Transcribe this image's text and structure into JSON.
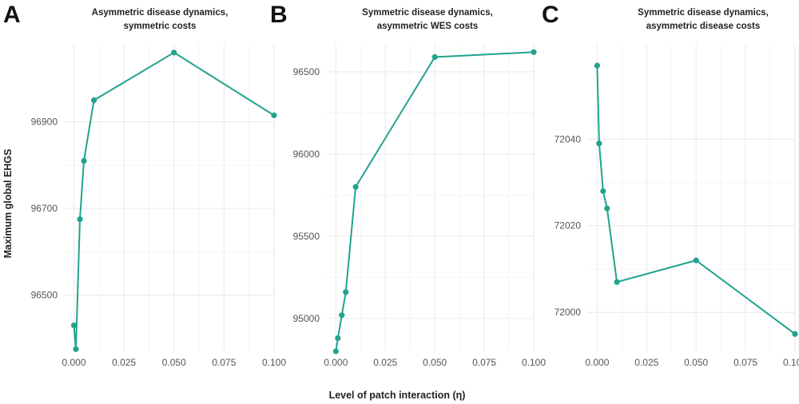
{
  "chart_data": [
    {
      "type": "line",
      "panel": "A",
      "title": "Asymmetric disease dynamics,",
      "subtitle": "symmetric costs",
      "xlabel": "Level of patch interaction (η)",
      "ylabel": "Maximum global EHGS",
      "xlim": [
        -0.005,
        0.1
      ],
      "ylim": [
        96370,
        97080
      ],
      "xticks": [
        0.0,
        0.025,
        0.05,
        0.075,
        0.1
      ],
      "xtick_labels": [
        "0.000",
        "0.025",
        "0.050",
        "0.075",
        "0.100"
      ],
      "yticks": [
        96500,
        96700,
        96900
      ],
      "ytick_labels": [
        "96500",
        "96700",
        "96900"
      ],
      "color": "#21a38e",
      "x": [
        0.0,
        0.001,
        0.003,
        0.005,
        0.01,
        0.05,
        0.1
      ],
      "y": [
        96430,
        96375,
        96675,
        96810,
        96950,
        97060,
        96915
      ]
    },
    {
      "type": "line",
      "panel": "B",
      "title": "Symmetric disease dynamics,",
      "subtitle": "asymmetric WES costs",
      "xlabel": "Level of patch interaction (η)",
      "ylabel": "",
      "xlim": [
        -0.005,
        0.1
      ],
      "ylim": [
        94800,
        96670
      ],
      "xticks": [
        0.0,
        0.025,
        0.05,
        0.075,
        0.1
      ],
      "xtick_labels": [
        "0.000",
        "0.025",
        "0.050",
        "0.075",
        "0.100"
      ],
      "yticks": [
        95000,
        95500,
        96000,
        96500
      ],
      "ytick_labels": [
        "95000",
        "95500",
        "96000",
        "96500"
      ],
      "color": "#21a38e",
      "x": [
        0.0,
        0.001,
        0.003,
        0.005,
        0.01,
        0.05,
        0.1
      ],
      "y": [
        94800,
        94880,
        95020,
        95160,
        95800,
        96590,
        96620
      ]
    },
    {
      "type": "line",
      "panel": "C",
      "title": "Symmetric disease dynamics,",
      "subtitle": "asymmetric disease costs",
      "xlabel": "Level of patch interaction (η)",
      "ylabel": "",
      "xlim": [
        -0.005,
        0.1
      ],
      "ylim": [
        71991,
        72062
      ],
      "xticks": [
        0.0,
        0.025,
        0.05,
        0.075,
        0.1
      ],
      "xtick_labels": [
        "0.000",
        "0.025",
        "0.050",
        "0.075",
        "0.100"
      ],
      "yticks": [
        72000,
        72020,
        72040
      ],
      "ytick_labels": [
        "72000",
        "72020",
        "72040"
      ],
      "color": "#21a38e",
      "x": [
        0.0,
        0.001,
        0.003,
        0.005,
        0.01,
        0.05,
        0.1
      ],
      "y": [
        72057,
        72039,
        72028,
        72024,
        72007,
        72012,
        71995
      ]
    }
  ],
  "figure": {
    "ylabel": "Maximum global EHGS",
    "xlabel": "Level of patch interaction (η)"
  }
}
